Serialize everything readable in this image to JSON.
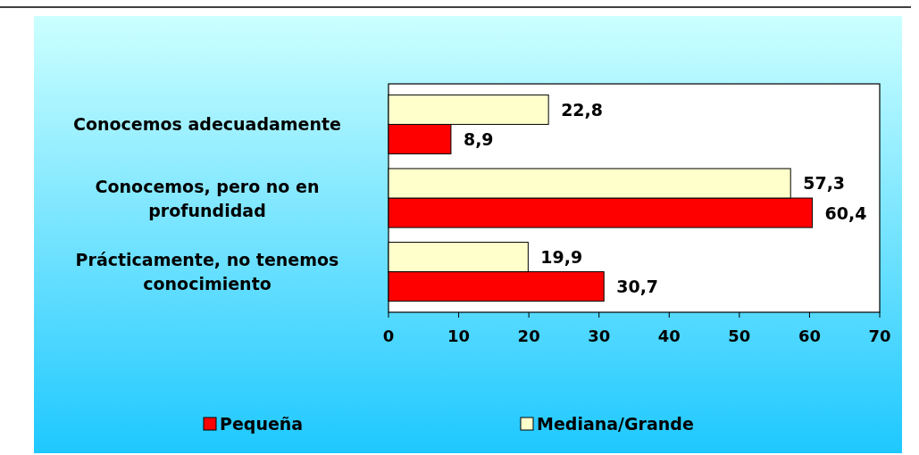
{
  "chart_data": {
    "type": "bar",
    "orientation": "horizontal",
    "categories": [
      "Conocemos adecuadamente",
      "Conocemos, pero no en profundidad",
      "Prácticamente, no tenemos conocimiento"
    ],
    "series": [
      {
        "name": "Pequeña",
        "color": "#ff0000",
        "values": [
          8.9,
          60.4,
          30.7
        ],
        "value_labels": [
          "8,9",
          "60,4",
          "30,7"
        ]
      },
      {
        "name": "Mediana/Grande",
        "color": "#ffffcc",
        "values": [
          22.8,
          57.3,
          19.9
        ],
        "value_labels": [
          "22,8",
          "57,3",
          "19,9"
        ]
      }
    ],
    "xlim": [
      0,
      70
    ],
    "xticks": [
      0,
      10,
      20,
      30,
      40,
      50,
      60,
      70
    ],
    "legend": "bottom",
    "grid": false
  }
}
